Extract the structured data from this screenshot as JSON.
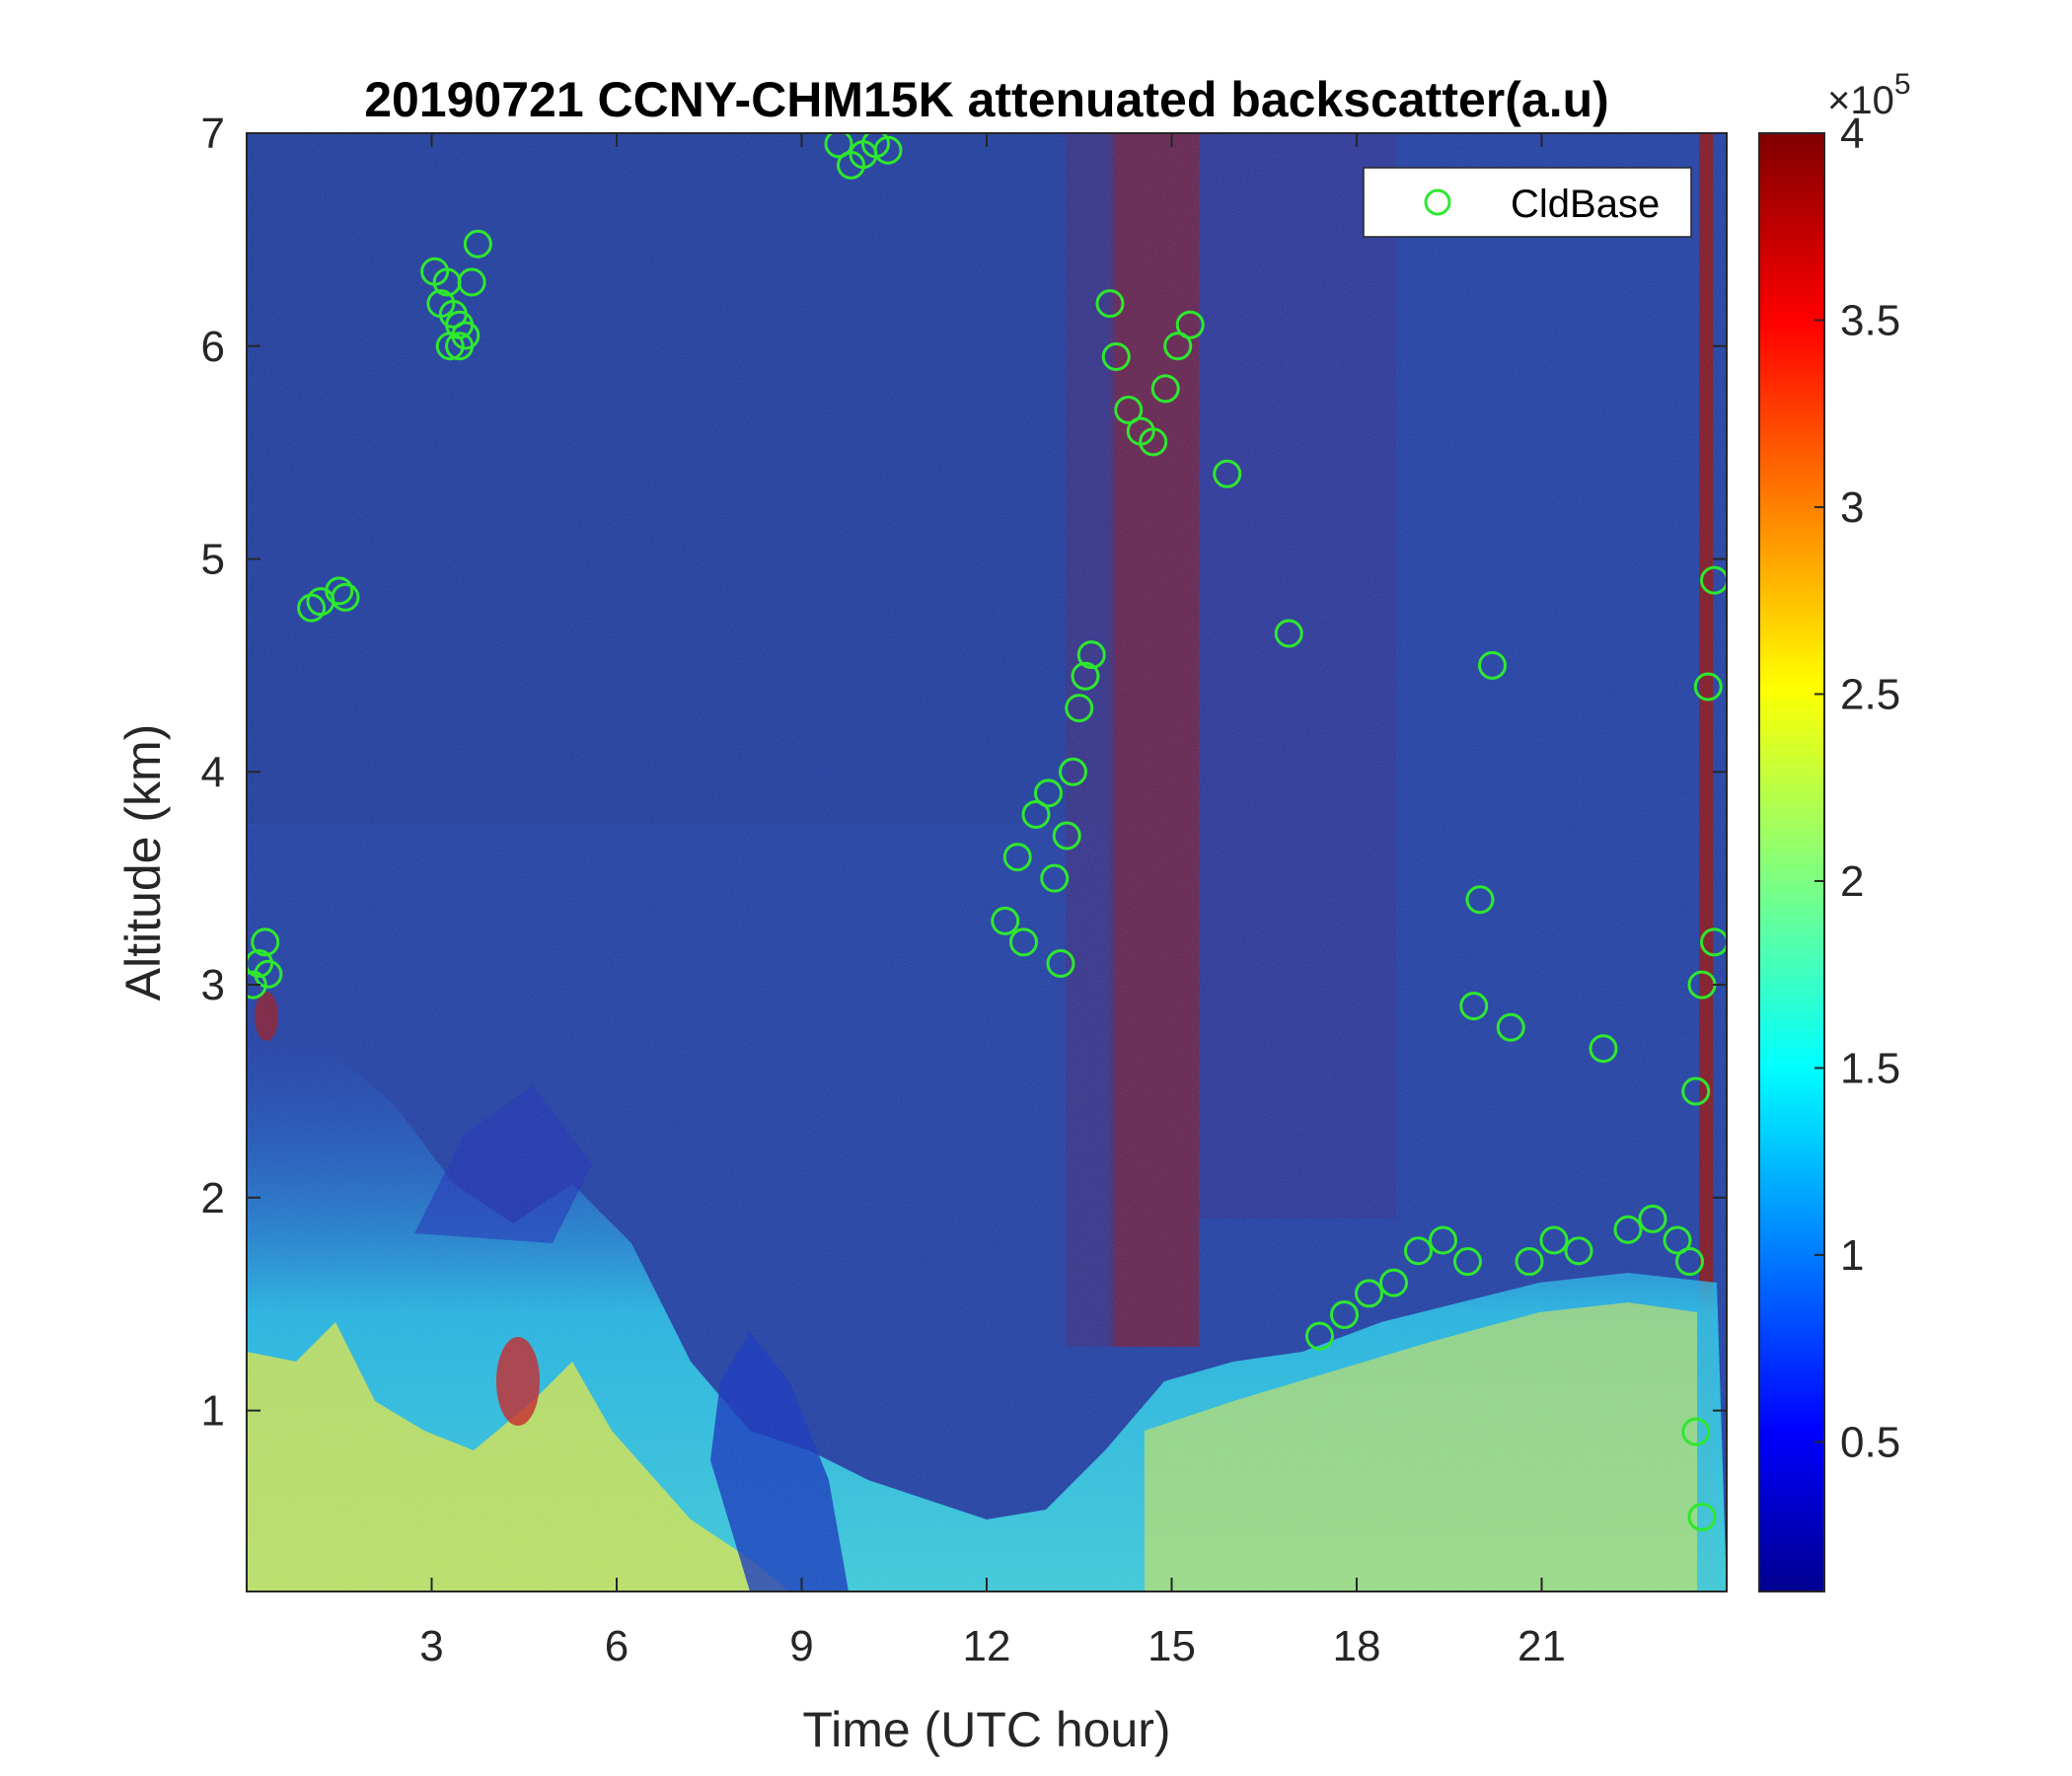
{
  "chart_data": {
    "type": "heatmap",
    "title": "20190721 CCNY-CHM15K attenuated backscatter(a.u)",
    "xlabel": "Time (UTC hour)",
    "ylabel": "Altitude (km)",
    "xlim": [
      0,
      24
    ],
    "ylim": [
      0.15,
      7
    ],
    "xticks": [
      3,
      6,
      9,
      12,
      15,
      18,
      21
    ],
    "xtick_labels": [
      "3",
      "6",
      "9",
      "12",
      "15",
      "18",
      "21"
    ],
    "yticks": [
      1,
      2,
      3,
      4,
      5,
      6,
      7
    ],
    "ytick_labels": [
      "1",
      "2",
      "3",
      "4",
      "5",
      "6",
      "7"
    ],
    "colorbar": {
      "min": 10000,
      "max": 400000,
      "ticks": [
        0.5,
        1,
        1.5,
        2,
        2.5,
        3,
        3.5,
        4
      ],
      "tick_labels": [
        "0.5",
        "1",
        "1.5",
        "2",
        "2.5",
        "3",
        "3.5",
        "4"
      ],
      "multiplier_base": "×10",
      "multiplier_exp": "5",
      "colormap": "jet"
    },
    "legend": {
      "entries": [
        "CldBase"
      ],
      "location": "top-right"
    },
    "marker_color": "#2ee82e",
    "series": [
      {
        "name": "CldBase",
        "x": [
          0.1,
          0.2,
          0.3,
          0.35,
          1.05,
          1.2,
          1.5,
          1.6,
          3.05,
          3.15,
          3.25,
          3.35,
          3.45,
          3.55,
          3.65,
          3.75,
          3.3,
          3.45,
          9.6,
          9.8,
          10.0,
          10.2,
          10.4,
          12.3,
          12.5,
          12.6,
          12.8,
          13.0,
          13.1,
          13.2,
          13.3,
          13.4,
          13.5,
          13.6,
          13.7,
          14.0,
          14.1,
          14.3,
          14.5,
          14.7,
          14.9,
          15.1,
          15.3,
          15.9,
          16.9,
          17.4,
          17.8,
          18.2,
          18.6,
          19.0,
          19.4,
          19.8,
          19.9,
          20.0,
          20.2,
          20.5,
          20.8,
          21.2,
          21.6,
          22.0,
          22.4,
          22.8,
          23.2,
          23.4,
          23.5,
          23.6,
          23.7,
          23.8,
          23.8,
          23.6,
          23.5
        ],
        "y": [
          3.0,
          3.1,
          3.2,
          3.05,
          4.77,
          4.8,
          4.85,
          4.82,
          6.35,
          6.2,
          6.3,
          6.15,
          6.0,
          6.05,
          6.3,
          6.48,
          6.0,
          6.1,
          6.95,
          6.85,
          6.9,
          6.95,
          6.92,
          3.3,
          3.6,
          3.2,
          3.8,
          3.9,
          3.5,
          3.1,
          3.7,
          4.0,
          4.3,
          4.45,
          4.55,
          6.2,
          5.95,
          5.7,
          5.6,
          5.55,
          5.8,
          6.0,
          6.1,
          5.4,
          4.65,
          1.35,
          1.45,
          1.55,
          1.6,
          1.75,
          1.8,
          1.7,
          2.9,
          3.4,
          4.5,
          2.8,
          1.7,
          1.8,
          1.75,
          2.7,
          1.85,
          1.9,
          1.8,
          1.7,
          2.5,
          3.0,
          4.4,
          4.9,
          3.2,
          0.5,
          0.9
        ]
      }
    ]
  }
}
